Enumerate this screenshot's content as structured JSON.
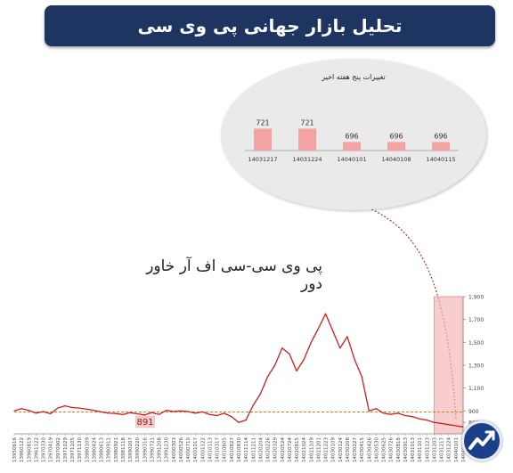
{
  "header": {
    "title": "تحلیل بازار جهانی پی وی سی"
  },
  "colors": {
    "title_bg": "#1e3562",
    "line": "#cc1e1e",
    "highlight": "#f3b8b8",
    "bar": "#f4a3a3",
    "ref_line": "#d97a2a"
  },
  "chart_data": [
    {
      "type": "bar",
      "title": "تغییرات پنج هفته اخیر",
      "categories": [
        "14031217",
        "14031224",
        "14040101",
        "14040108",
        "14040115"
      ],
      "values": [
        721,
        721,
        696,
        696,
        696
      ],
      "value_labels": [
        "721",
        "721",
        "696",
        "696",
        "696"
      ]
    },
    {
      "type": "line",
      "title": "پی وی سی-سی اف آر خاور دور",
      "ylim": [
        700,
        1900
      ],
      "yticks": [
        {
          "value": 800,
          "label": "800"
        },
        {
          "value": 900,
          "label": "900"
        },
        {
          "value": 1100,
          "label": "1,100"
        },
        {
          "value": 1300,
          "label": "1,300"
        },
        {
          "value": 1500,
          "label": "1,500"
        },
        {
          "value": 1700,
          "label": "1,700"
        },
        {
          "value": 1900,
          "label": "1,900"
        }
      ],
      "reference_line": {
        "value": 891,
        "label": "891"
      },
      "highlight_range": [
        58,
        62
      ],
      "x": [
        "13950616",
        "13960122",
        "13960819",
        "13961122",
        "13970330",
        "13970419",
        "13970902",
        "13971029",
        "13971105",
        "13971130",
        "13980109",
        "13980424",
        "13980613",
        "13980911",
        "13980921",
        "13981118",
        "13990207",
        "13990220",
        "13990316",
        "13990721",
        "13991208",
        "13991230",
        "14000303",
        "14000526",
        "14000710",
        "14001017",
        "14001122",
        "14010113",
        "14010317",
        "14010605",
        "14010827",
        "14010830",
        "14011114",
        "14011211",
        "14020204",
        "14020226",
        "14020329",
        "14020524",
        "14020724",
        "14020815",
        "14021024",
        "14021109",
        "14021201",
        "14021223",
        "14030109",
        "14030124",
        "14030208",
        "14030227",
        "14030415",
        "14030426",
        "14030530",
        "14030625",
        "14030726",
        "14030818",
        "14030913",
        "14031013",
        "14031101",
        "14031123",
        "14031203",
        "14031217",
        "14031224",
        "14040101",
        "14040115"
      ],
      "series": [
        {
          "values": [
            900,
            920,
            905,
            880,
            895,
            875,
            925,
            945,
            930,
            925,
            915,
            905,
            892,
            880,
            878,
            868,
            885,
            875,
            865,
            885,
            870,
            905,
            895,
            900,
            895,
            880,
            892,
            868,
            860,
            880,
            850,
            800,
            820,
            950,
            1050,
            1200,
            1300,
            1450,
            1400,
            1250,
            1350,
            1500,
            1620,
            1750,
            1600,
            1450,
            1550,
            1350,
            1200,
            900,
            920,
            880,
            870,
            880,
            860,
            850,
            830,
            820,
            800,
            790,
            780,
            770,
            760
          ]
        }
      ]
    }
  ]
}
